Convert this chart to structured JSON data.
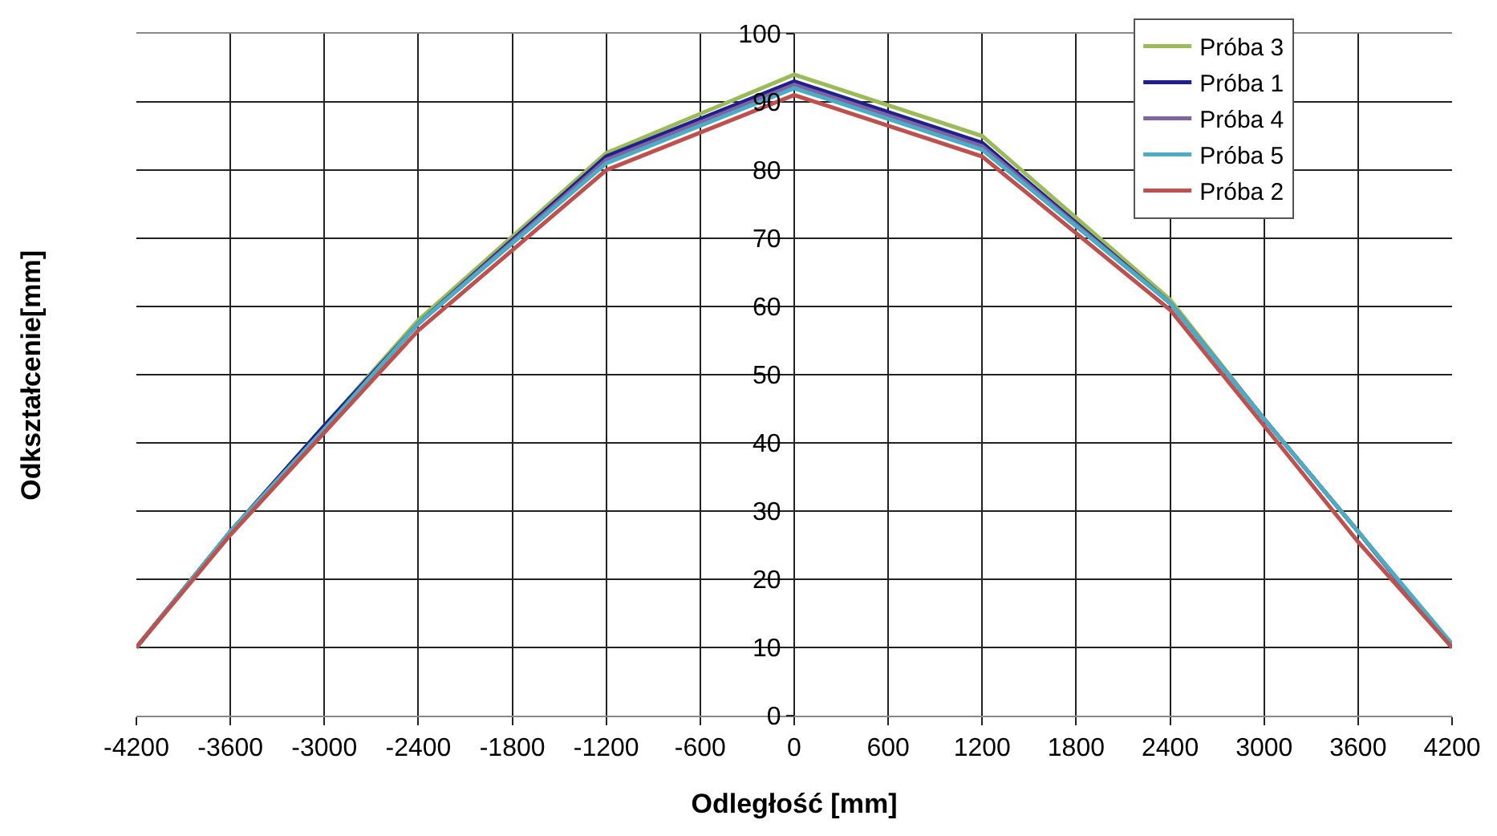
{
  "chart_data": {
    "type": "line",
    "xlabel": "Odległość [mm]",
    "ylabel": "Odkształcenie[mm]",
    "x": [
      -4200,
      -3600,
      -3000,
      -2400,
      -1200,
      0,
      1200,
      2400,
      3000,
      3600,
      4200
    ],
    "series": [
      {
        "name": "Próba 3",
        "color": "#9bbb59",
        "values": [
          10,
          27,
          42.5,
          58,
          82.5,
          94,
          85,
          61,
          43.5,
          27,
          10
        ]
      },
      {
        "name": "Próba 1",
        "color": "#1f1f8f",
        "values": [
          10,
          27,
          42.5,
          57.5,
          82,
          93,
          84,
          60.5,
          43.5,
          27,
          10
        ]
      },
      {
        "name": "Próba 4",
        "color": "#8064a2",
        "values": [
          10,
          27,
          42,
          57.5,
          81.5,
          92.5,
          83.5,
          60.5,
          43.5,
          27,
          10
        ]
      },
      {
        "name": "Próba 5",
        "color": "#4bacc6",
        "values": [
          10,
          27,
          42,
          57.5,
          81,
          92,
          83,
          60.5,
          43.5,
          27,
          10.5
        ]
      },
      {
        "name": "Próba 2",
        "color": "#c0504d",
        "values": [
          10,
          26.5,
          41.5,
          56.5,
          80,
          91,
          82,
          59.5,
          42.5,
          25.5,
          10
        ]
      }
    ],
    "xlim": [
      -4200,
      4200
    ],
    "xticks": [
      -4200,
      -3600,
      -3000,
      -2400,
      -1800,
      -1200,
      -600,
      0,
      600,
      1200,
      1800,
      2400,
      3000,
      3600,
      4200
    ],
    "ylim": [
      0,
      100
    ],
    "yticks": [
      0,
      10,
      20,
      30,
      40,
      50,
      60,
      70,
      80,
      90,
      100
    ],
    "grid": true,
    "legend": "top right",
    "marker": "none",
    "line_style": "solid"
  }
}
